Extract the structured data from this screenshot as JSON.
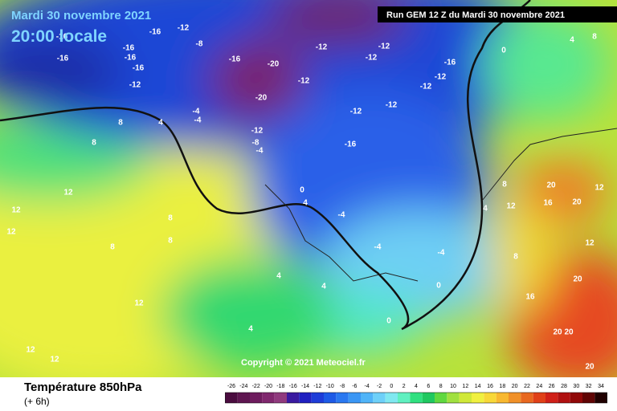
{
  "date": "Mardi 30 novembre 2021",
  "local_time": "20:00 locale",
  "run_info": "Run GEM 12 Z du Mardi 30 novembre 2021",
  "copyright": "Copyright © 2021 Meteociel.fr",
  "legend": {
    "title": "Température 850hPa",
    "step": "(+ 6h)",
    "ticks": [
      -26,
      -24,
      -22,
      -20,
      -18,
      -16,
      -14,
      -12,
      -10,
      -8,
      -6,
      -4,
      -2,
      0,
      2,
      4,
      6,
      8,
      10,
      12,
      14,
      16,
      18,
      20,
      22,
      24,
      26,
      28,
      30,
      32,
      34
    ],
    "colors": [
      "#4a0c3f",
      "#5e1650",
      "#6e1c5e",
      "#80286e",
      "#903a7e",
      "#3a1aa0",
      "#2020c0",
      "#1e3cd8",
      "#1e5ae6",
      "#2a78f0",
      "#3a96f4",
      "#50b4f8",
      "#6ed0f8",
      "#80e8f0",
      "#60f0c0",
      "#30e080",
      "#20c860",
      "#60d840",
      "#a0e040",
      "#d0e838",
      "#f0f040",
      "#f8d838",
      "#f8b830",
      "#f09028",
      "#e86820",
      "#e04018",
      "#d02018",
      "#b01010",
      "#900808",
      "#600404",
      "#200000"
    ]
  },
  "contour_labels": [
    -16,
    -16,
    -12,
    -8,
    -16,
    -16,
    -16,
    -16,
    -12,
    -16,
    -12,
    -12,
    -12,
    -12,
    -12,
    -12,
    -16,
    -12,
    -12,
    -16,
    -20,
    -20,
    -12,
    -8,
    -4,
    -4,
    -4,
    4,
    8,
    8,
    12,
    12,
    12,
    8,
    8,
    8,
    12,
    12,
    12,
    4,
    0,
    -4,
    -4,
    -4,
    0,
    0,
    4,
    4,
    4,
    8,
    12,
    16,
    20,
    20,
    12,
    12,
    16,
    20,
    20,
    20,
    20,
    4,
    8,
    0,
    4,
    8
  ]
}
